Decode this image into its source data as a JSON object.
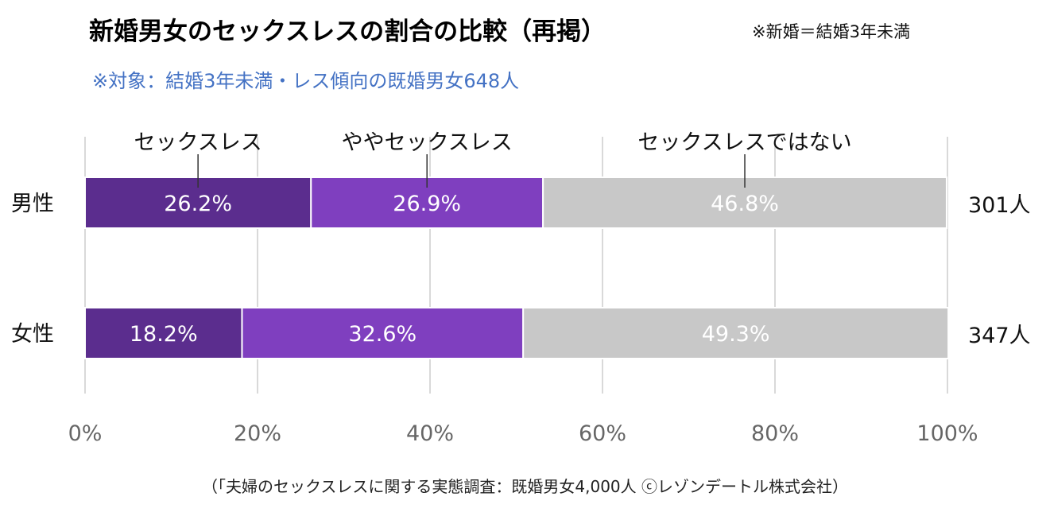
{
  "header": {
    "title": "新婚男女のセックスレスの割合の比較（再掲）",
    "note": "※新婚＝結婚3年未満",
    "subtitle": "※対象：結婚3年未満・レス傾向の既婚男女648人"
  },
  "footer": {
    "source": "（「夫婦のセックスレスに関する実態調査：既婚男女4,000人 ⓒレゾンデートル株式会社）"
  },
  "chart_data": {
    "type": "bar",
    "orientation": "horizontal",
    "stacked": true,
    "percent_stacked": true,
    "categories": [
      "男性",
      "女性"
    ],
    "category_counts": [
      "301人",
      "347人"
    ],
    "series": [
      {
        "name": "セックスレス",
        "values": [
          26.2,
          18.2
        ],
        "labels": [
          "26.2%",
          "18.2%"
        ],
        "color": "#5b2d8e"
      },
      {
        "name": "ややセックスレス",
        "values": [
          26.9,
          32.6
        ],
        "labels": [
          "26.9%",
          "32.6%"
        ],
        "color": "#7f3fbf"
      },
      {
        "name": "セックスレスではない",
        "values": [
          46.8,
          49.3
        ],
        "labels": [
          "46.8%",
          "49.3%"
        ],
        "color": "#c8c8c8"
      }
    ],
    "xlim": [
      0,
      100
    ],
    "xticks": [
      "0%",
      "20%",
      "40%",
      "60%",
      "80%",
      "100%"
    ],
    "grid": true,
    "legend": "top"
  }
}
